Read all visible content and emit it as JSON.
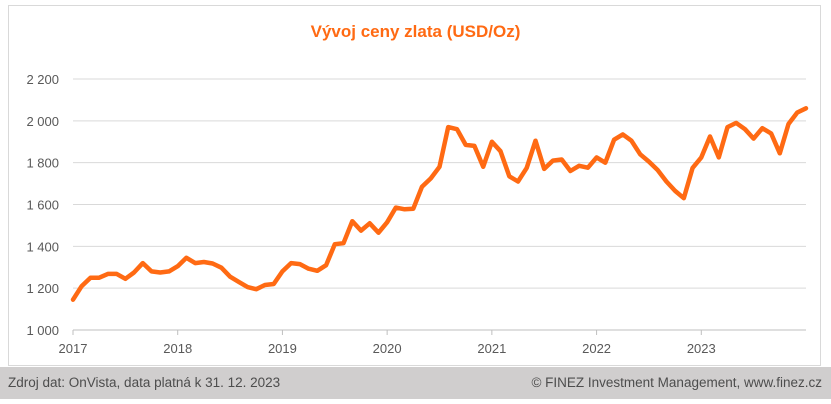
{
  "chart_data": {
    "type": "line",
    "title": "Vývoj ceny zlata (USD/Oz)",
    "xlabel": "",
    "ylabel": "",
    "x_ticks": [
      "2017",
      "2018",
      "2019",
      "2020",
      "2021",
      "2022",
      "2023"
    ],
    "y_ticks": [
      "1 000",
      "1 200",
      "1 400",
      "1 600",
      "1 800",
      "2 000",
      "2 200"
    ],
    "xlim": [
      2017.0,
      2024.0
    ],
    "ylim": [
      1000,
      2200
    ],
    "grid": "horizontal",
    "series": [
      {
        "color": "#ff6a13",
        "x": [
          2017.0,
          2017.083,
          2017.167,
          2017.25,
          2017.333,
          2017.417,
          2017.5,
          2017.583,
          2017.667,
          2017.75,
          2017.833,
          2017.917,
          2018.0,
          2018.083,
          2018.167,
          2018.25,
          2018.333,
          2018.417,
          2018.5,
          2018.583,
          2018.667,
          2018.75,
          2018.833,
          2018.917,
          2019.0,
          2019.083,
          2019.167,
          2019.25,
          2019.333,
          2019.417,
          2019.5,
          2019.583,
          2019.667,
          2019.75,
          2019.833,
          2019.917,
          2020.0,
          2020.083,
          2020.167,
          2020.25,
          2020.333,
          2020.417,
          2020.5,
          2020.583,
          2020.667,
          2020.75,
          2020.833,
          2020.917,
          2021.0,
          2021.083,
          2021.167,
          2021.25,
          2021.333,
          2021.417,
          2021.5,
          2021.583,
          2021.667,
          2021.75,
          2021.833,
          2021.917,
          2022.0,
          2022.083,
          2022.167,
          2022.25,
          2022.333,
          2022.417,
          2022.5,
          2022.583,
          2022.667,
          2022.75,
          2022.833,
          2022.917,
          2023.0,
          2023.083,
          2023.167,
          2023.25,
          2023.333,
          2023.417,
          2023.5,
          2023.583,
          2023.667,
          2023.75,
          2023.833,
          2023.917,
          2024.0
        ],
        "y": [
          1145,
          1210,
          1250,
          1250,
          1268,
          1268,
          1245,
          1275,
          1320,
          1280,
          1275,
          1280,
          1305,
          1345,
          1320,
          1325,
          1318,
          1298,
          1255,
          1230,
          1205,
          1195,
          1215,
          1220,
          1280,
          1320,
          1315,
          1293,
          1283,
          1310,
          1410,
          1415,
          1520,
          1475,
          1510,
          1465,
          1515,
          1585,
          1577,
          1580,
          1685,
          1725,
          1780,
          1970,
          1960,
          1885,
          1880,
          1780,
          1900,
          1855,
          1735,
          1710,
          1775,
          1905,
          1770,
          1810,
          1815,
          1760,
          1785,
          1776,
          1825,
          1800,
          1910,
          1935,
          1905,
          1840,
          1805,
          1765,
          1710,
          1665,
          1630,
          1775,
          1825,
          1925,
          1825,
          1970,
          1990,
          1960,
          1915,
          1965,
          1940,
          1845,
          1985,
          2040,
          2060
        ]
      }
    ]
  },
  "footer": {
    "source": "Zdroj dat: OnVista, data platná k 31. 12. 2023",
    "copyright": "© FINEZ Investment Management, www.finez.cz"
  }
}
